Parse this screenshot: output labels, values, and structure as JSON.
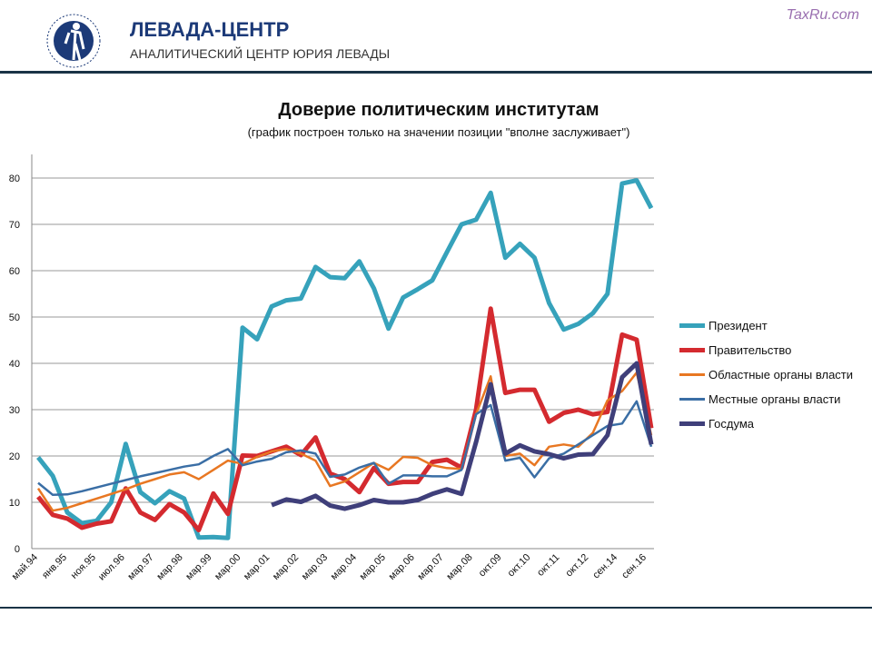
{
  "header": {
    "brand": "ЛЕВАДА-ЦЕНТР",
    "subtitle": "АНАЛИТИЧЕСКИЙ ЦЕНТР ЮРИЯ ЛЕВАДЫ",
    "watermark": "TaxRu.com",
    "logo_text": "Левада-Центр"
  },
  "colors": {
    "header_line": "#1a3346",
    "brand": "#1c3a78"
  },
  "chart_data": {
    "type": "line",
    "title": "Доверие политическим институтам",
    "subtitle": "(график построен только на значении позиции \"вполне заслуживает\")",
    "ylim": [
      0,
      80
    ],
    "yticks": [
      0,
      10,
      20,
      30,
      40,
      50,
      60,
      70,
      80
    ],
    "grid": true,
    "legend_placement": "right",
    "xtick_labels": [
      "май.94",
      "янв.95",
      "ноя.95",
      "июл.96",
      "мар.97",
      "мар.98",
      "мар.99",
      "мар.00",
      "мар.01",
      "мар.02",
      "мар.03",
      "мар.04",
      "мар.05",
      "мар.06",
      "мар.07",
      "мар.08",
      "окт.09",
      "окт.10",
      "окт.11",
      "окт.12",
      "сен.14",
      "сен.16"
    ],
    "series": [
      {
        "name": "Президент",
        "color": "#36a2bb",
        "width": 5,
        "start": 0,
        "values": [
          19.7,
          15.7,
          7.8,
          5.5,
          6,
          10,
          22.6,
          12.2,
          9.8,
          12.4,
          10.8,
          2.4,
          2.5,
          2.3,
          47.7,
          45.2,
          52.3,
          53.6,
          54,
          60.8,
          58.6,
          58.4,
          62,
          56.2,
          47.5,
          54.2,
          56,
          57.9,
          64,
          70,
          71,
          76.8,
          62.8,
          65.8,
          62.8,
          53,
          47.3,
          48.5,
          50.8,
          55,
          78.8,
          79.5,
          73.5
        ]
      },
      {
        "name": "Правительство",
        "color": "#d42a2f",
        "width": 5,
        "start": 0,
        "values": [
          11.2,
          7.3,
          6.5,
          4.5,
          5.4,
          5.9,
          13,
          7.8,
          6.2,
          9.6,
          7.8,
          4,
          11.9,
          7.5,
          20.1,
          20,
          21,
          22,
          20.2,
          24,
          16.2,
          15,
          12.2,
          17.4,
          14,
          14.4,
          14.4,
          18.7,
          19.2,
          17.5,
          30,
          51.8,
          33.6,
          34.3,
          34.3,
          27.4,
          29.3,
          30,
          29,
          29.5,
          46.2,
          45.1,
          26
        ]
      },
      {
        "name": "Областные органы власти",
        "color": "#e87722",
        "width": 2.5,
        "start": 0,
        "values": [
          13,
          8.2,
          8.8,
          9.8,
          10.8,
          11.8,
          12.8,
          14,
          15,
          16,
          16.5,
          15,
          17,
          19,
          18.3,
          19.8,
          21,
          21.5,
          20.5,
          19,
          13.5,
          14.5,
          16.5,
          18.5,
          17,
          19.8,
          19.6,
          18,
          17.4,
          17.2,
          29,
          37.2,
          20,
          20.5,
          18,
          22,
          22.5,
          22,
          25,
          32,
          34,
          38,
          24.5
        ]
      },
      {
        "name": "Местные органы власти",
        "color": "#3a6ea5",
        "width": 2.5,
        "start": 0,
        "values": [
          14.2,
          11.6,
          11.7,
          12.4,
          13.2,
          14,
          14.8,
          15.6,
          16.3,
          17,
          17.7,
          18.2,
          20,
          21.5,
          18,
          18.8,
          19.4,
          20.8,
          21.2,
          20.5,
          15.5,
          16,
          17.5,
          18.5,
          14,
          15.8,
          15.8,
          15.6,
          15.6,
          17,
          29,
          31,
          19,
          19.6,
          15.4,
          19.5,
          20.5,
          22.5,
          24.5,
          26.5,
          27,
          31.8,
          22
        ]
      },
      {
        "name": "Госдума",
        "color": "#3f3f7a",
        "width": 5,
        "start": 16,
        "values": [
          9.4,
          10.6,
          10.1,
          11.4,
          9.3,
          8.6,
          9.4,
          10.5,
          10,
          10,
          10.5,
          11.8,
          12.8,
          11.8,
          23,
          35.5,
          20.5,
          22.3,
          21,
          20.4,
          19.5,
          20.3,
          20.4,
          24.5,
          37,
          40,
          22.5
        ]
      }
    ]
  }
}
